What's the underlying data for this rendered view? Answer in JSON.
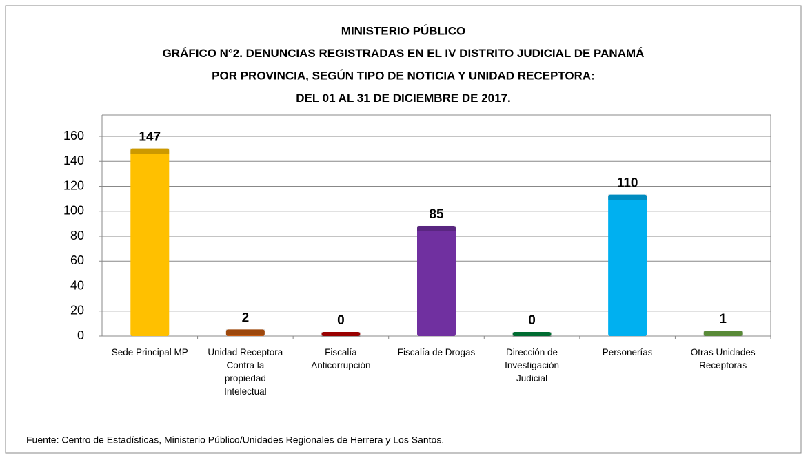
{
  "chart_data": {
    "type": "bar",
    "title": [
      "MINISTERIO PÚBLICO",
      "GRÁFICO N°2.  DENUNCIAS REGISTRADAS EN EL IV DISTRITO JUDICIAL DE PANAMÁ",
      "POR PROVINCIA, SEGÚN TIPO DE NOTICIA Y UNIDAD RECEPTORA:",
      "DEL 01 AL 31 DE DICIEMBRE DE 2017."
    ],
    "categories": [
      "Sede Principal MP",
      "Unidad Receptora Contra la propiedad Intelectual",
      "Fiscalía Anticorrupción",
      "Fiscalía de Drogas",
      "Dirección de Investigación Judicial",
      "Personerías",
      "Otras Unidades Receptoras"
    ],
    "values": [
      147,
      2,
      0,
      85,
      0,
      110,
      1
    ],
    "colors": [
      "#ffc000",
      "#c55a11",
      "#c00000",
      "#7030a0",
      "#00873e",
      "#00b0f0",
      "#70ad47"
    ],
    "ylim": [
      0,
      160
    ],
    "yticks": [
      0,
      20,
      40,
      60,
      80,
      100,
      120,
      140,
      160
    ],
    "grid": true,
    "source": "Fuente: Centro de Estadísticas, Ministerio Público/Unidades Regionales de Herrera y Los Santos."
  }
}
